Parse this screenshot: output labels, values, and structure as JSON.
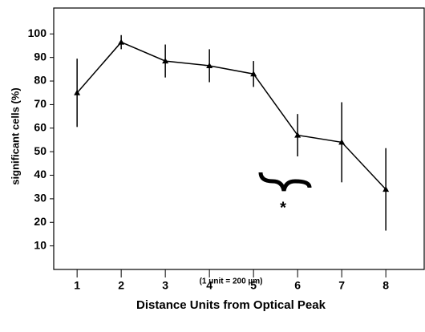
{
  "chart_data": {
    "type": "line",
    "y_label": "significant cells (%)",
    "x_note": "(1 unit = 200 µm)",
    "x_label": "Distance Units from Optical Peak",
    "annotation": "*",
    "x": [
      1,
      2,
      3,
      4,
      5,
      6,
      7,
      8
    ],
    "values": [
      75,
      96.5,
      88.5,
      86.5,
      83,
      57,
      54,
      34
    ],
    "errors": [
      14.5,
      3,
      7,
      7,
      5.5,
      9,
      17,
      17.5
    ],
    "color": "#000000",
    "xlim": [
      0.47,
      8.87
    ],
    "xticks": [
      1,
      2,
      3,
      4,
      5,
      6,
      7,
      8
    ],
    "ylim": [
      0,
      111
    ],
    "yticks": [
      10,
      20,
      30,
      40,
      50,
      60,
      70,
      80,
      90,
      100
    ]
  }
}
